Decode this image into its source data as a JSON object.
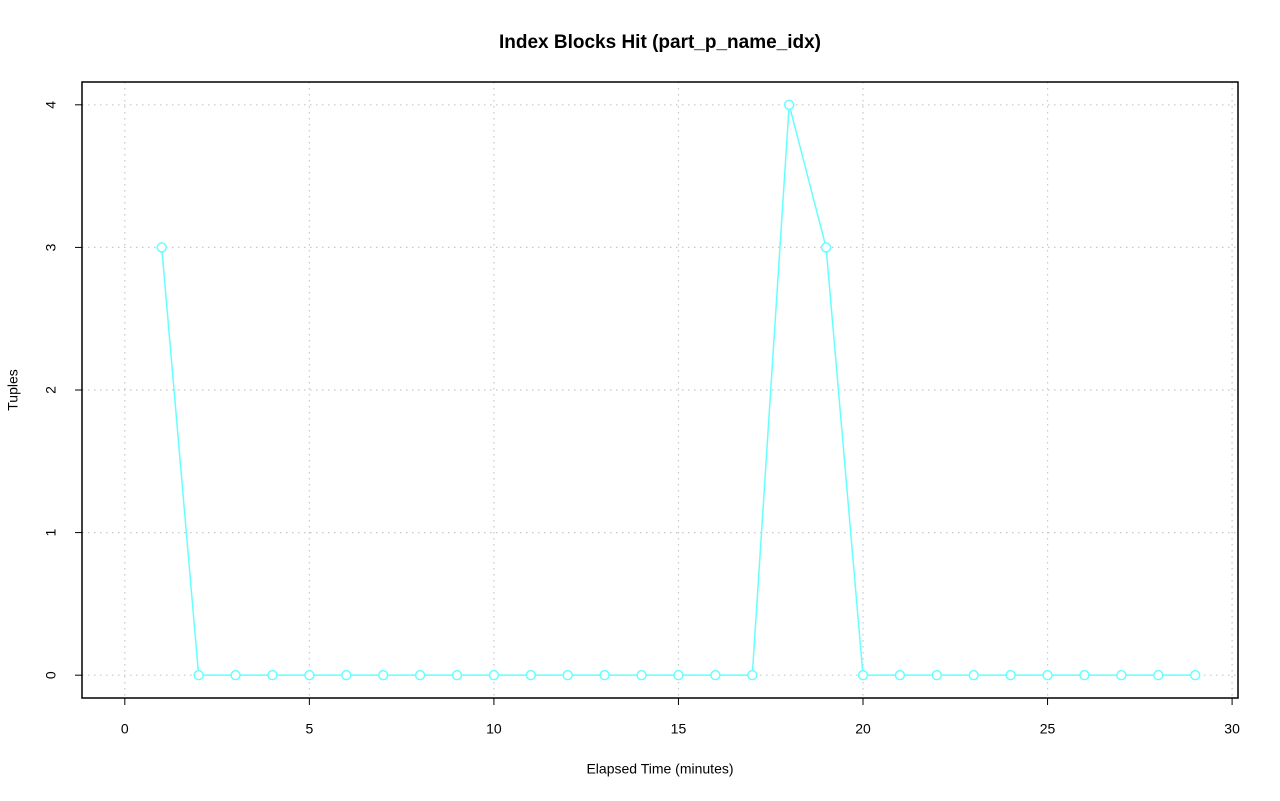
{
  "chart_data": {
    "type": "line",
    "title": "Index Blocks Hit (part_p_name_idx)",
    "x_label": "Elapsed Time (minutes)",
    "y_label": "Tuples",
    "x": [
      1,
      2,
      3,
      4,
      5,
      6,
      7,
      8,
      9,
      10,
      11,
      12,
      13,
      14,
      15,
      16,
      17,
      18,
      19,
      20,
      21,
      22,
      23,
      24,
      25,
      26,
      27,
      28,
      29
    ],
    "series": [
      {
        "name": "part_p_name_idx",
        "color": "#66ffff",
        "values": [
          3,
          0,
          0,
          0,
          0,
          0,
          0,
          0,
          0,
          0,
          0,
          0,
          0,
          0,
          0,
          0,
          0,
          4,
          3,
          0,
          0,
          0,
          0,
          0,
          0,
          0,
          0,
          0,
          0
        ]
      }
    ],
    "xlim": [
      -1.16,
      30.16
    ],
    "ylim": [
      -0.16,
      4.16
    ],
    "xticks": [
      0,
      5,
      10,
      15,
      20,
      25,
      30
    ],
    "yticks": [
      0,
      1,
      2,
      3,
      4
    ],
    "grid": true
  }
}
